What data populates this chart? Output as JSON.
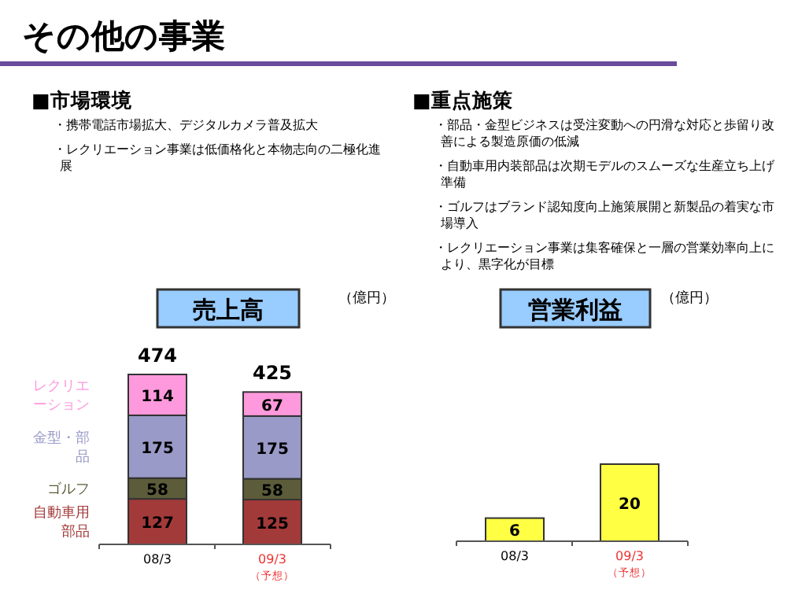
{
  "chart_data": [
    {
      "type": "other",
      "title": "その他の事業"
    },
    {
      "type": "other",
      "title": "■市場環境",
      "annotations": [
        "・携帯電話市場拡大、デジタルカメラ普及拡大",
        "・レクリエーション事業は低価格化と本物志向の二極化進展"
      ]
    },
    {
      "type": "other",
      "title": "■重点施策",
      "annotations": [
        "・部品・金型ビジネスは受注変動への円滑な対応と歩留り改善による製造原価の低減",
        "・自動車用内装部品は次期モデルのスムーズな生産立ち上げ準備",
        "・ゴルフはブランド認知度向上施策展開と新製品の着実な市場導入",
        "・レクリエーション事業は集客確保と一層の営業効率向上により、黒字化が目標"
      ]
    },
    {
      "type": "bar",
      "stacked": true,
      "title": "売上高",
      "categories": [
        "08/3",
        "09/3"
      ],
      "data_labels": true,
      "totals": [
        "474",
        "425"
      ],
      "annotations": [
        "（億円）",
        "（予想）"
      ],
      "series": [
        {
          "name": "自動車用部品",
          "color": "#a33a3a",
          "values": [
            127,
            125
          ]
        },
        {
          "name": "ゴルフ",
          "color": "#5c5c3a",
          "values": [
            58,
            58
          ]
        },
        {
          "name": "金型・部品",
          "color": "#9a9ac8",
          "values": [
            175,
            175
          ]
        },
        {
          "name": "レクリエーション",
          "color": "#ff99dd",
          "values": [
            114,
            67
          ]
        }
      ]
    },
    {
      "type": "bar",
      "title": "営業利益",
      "categories": [
        "08/3",
        "09/3"
      ],
      "values": [
        6,
        20
      ],
      "color": "#ffff44",
      "data_labels": true,
      "annotations": [
        "（億円）",
        "（予想）"
      ]
    }
  ]
}
